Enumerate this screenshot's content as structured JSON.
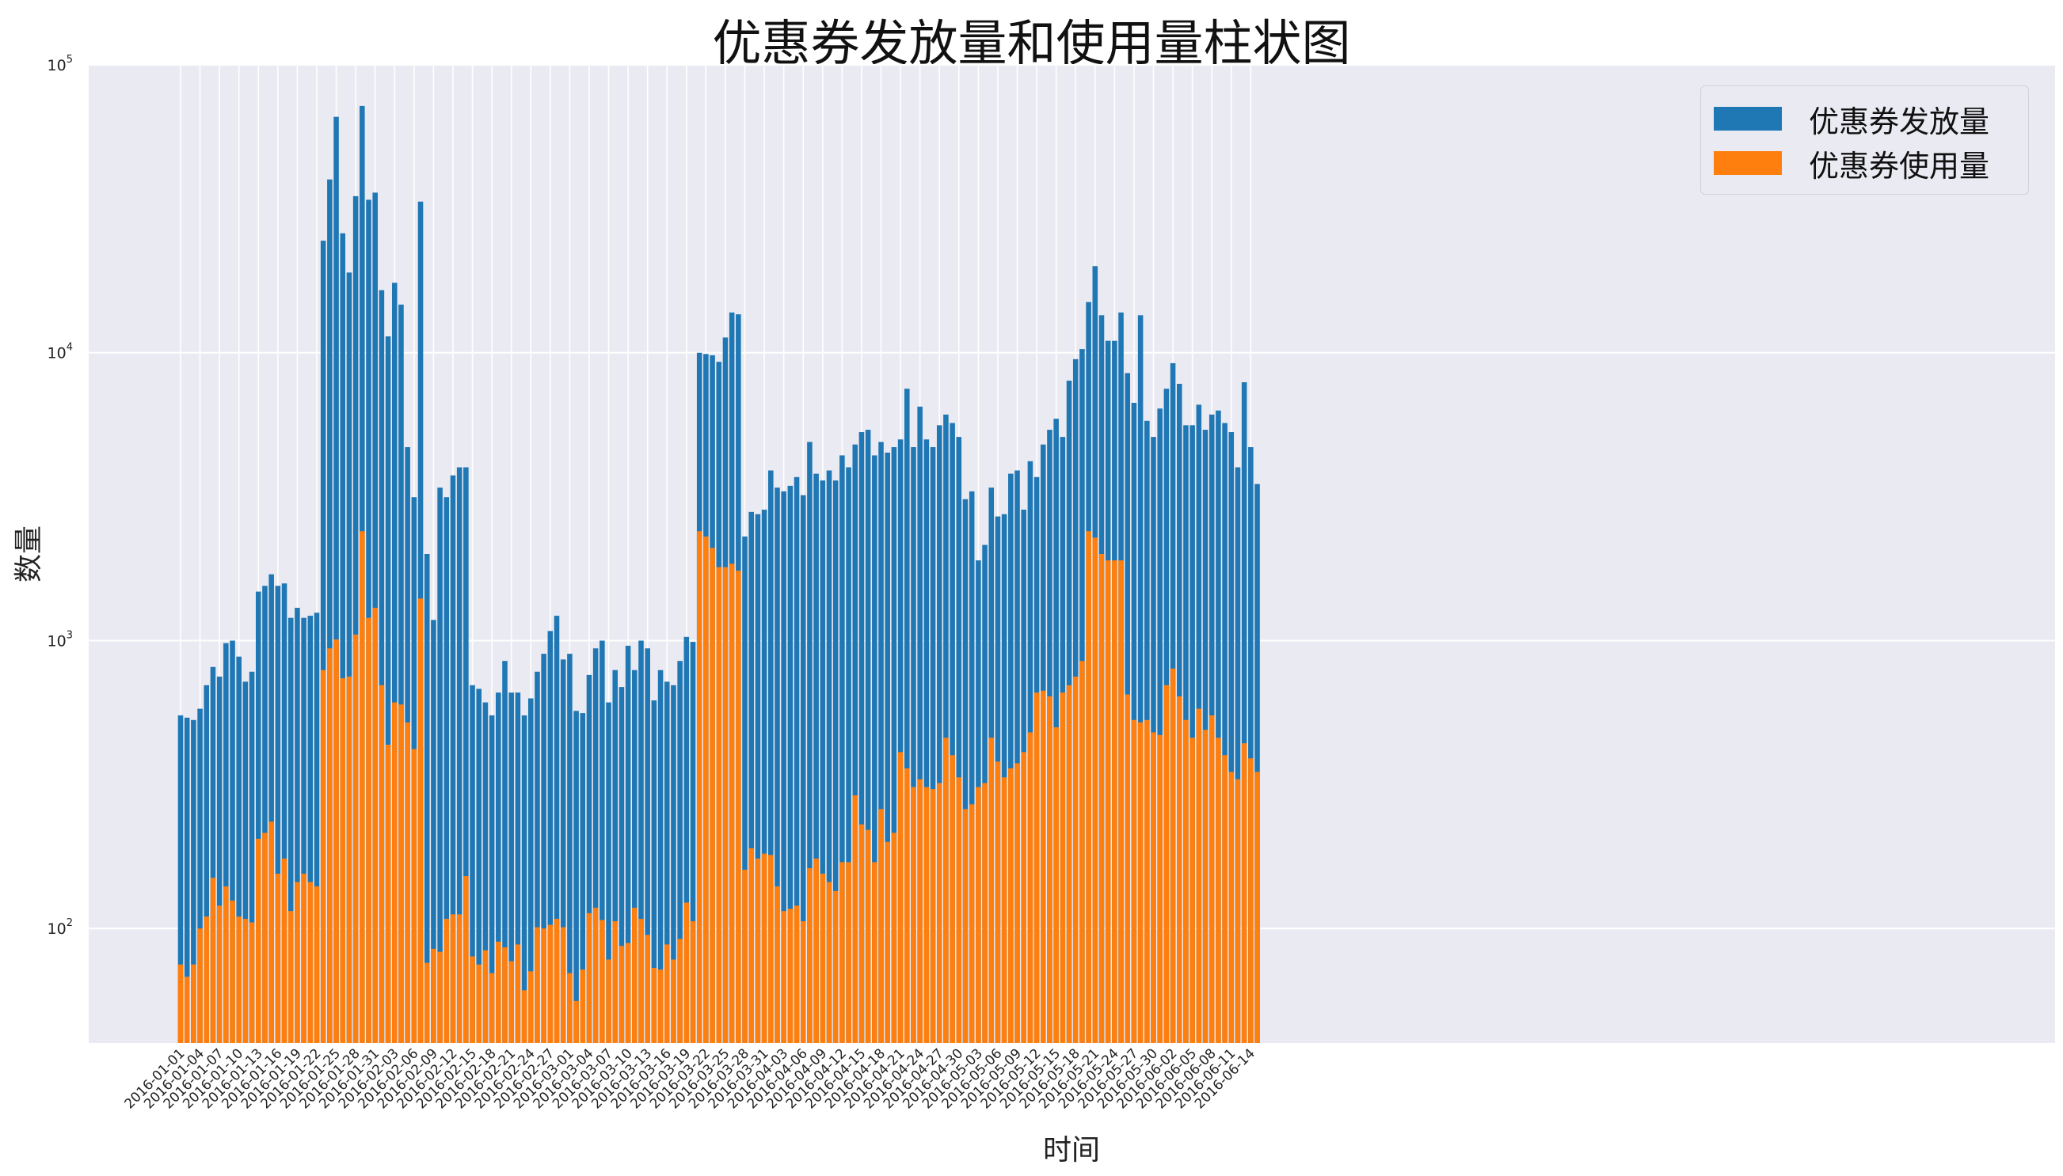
{
  "chart_data": {
    "type": "bar",
    "title": "优惠券发放量和使用量柱状图",
    "xlabel": "时间",
    "ylabel": "数量",
    "yscale": "log",
    "ylim": [
      40,
      100000
    ],
    "y_ticks": [
      {
        "value": 100,
        "base": "10",
        "exp": "2"
      },
      {
        "value": 1000,
        "base": "10",
        "exp": "3"
      },
      {
        "value": 10000,
        "base": "10",
        "exp": "4"
      },
      {
        "value": 100000,
        "base": "10",
        "exp": "5"
      }
    ],
    "grid": true,
    "legend_position": "top-right",
    "start_date": "2016-01-01",
    "x_tick_step_days": 3,
    "x_tick_labels": [
      "2016-01-01",
      "2016-01-04",
      "2016-01-07",
      "2016-01-10",
      "2016-01-13",
      "2016-01-16",
      "2016-01-19",
      "2016-01-22",
      "2016-01-25",
      "2016-01-28",
      "2016-01-31",
      "2016-02-03",
      "2016-02-06",
      "2016-02-09",
      "2016-02-12",
      "2016-02-15",
      "2016-02-18",
      "2016-02-21",
      "2016-02-24",
      "2016-02-27",
      "2016-03-01",
      "2016-03-04",
      "2016-03-07",
      "2016-03-10",
      "2016-03-13",
      "2016-03-16",
      "2016-03-19",
      "2016-03-22",
      "2016-03-25",
      "2016-03-28",
      "2016-03-31",
      "2016-04-03",
      "2016-04-06",
      "2016-04-09",
      "2016-04-12",
      "2016-04-15",
      "2016-04-18",
      "2016-04-21",
      "2016-04-24",
      "2016-04-27",
      "2016-04-30",
      "2016-05-03",
      "2016-05-06",
      "2016-05-09",
      "2016-05-12",
      "2016-05-15",
      "2016-05-18",
      "2016-05-21",
      "2016-05-24",
      "2016-05-27",
      "2016-05-30",
      "2016-06-02",
      "2016-06-05",
      "2016-06-08",
      "2016-06-11",
      "2016-06-14"
    ],
    "series": [
      {
        "name": "优惠券发放量",
        "color": "#1f77b4",
        "values": [
          550,
          540,
          530,
          580,
          700,
          810,
          750,
          980,
          1000,
          880,
          720,
          780,
          1480,
          1550,
          1700,
          1550,
          1580,
          1200,
          1300,
          1200,
          1220,
          1250,
          24500,
          40000,
          66000,
          26000,
          19000,
          35000,
          72000,
          34000,
          36000,
          16500,
          11400,
          17500,
          14700,
          4700,
          3150,
          33500,
          2000,
          1180,
          3400,
          3150,
          3750,
          4000,
          4000,
          700,
          680,
          610,
          550,
          660,
          850,
          660,
          660,
          550,
          630,
          780,
          900,
          1080,
          1220,
          860,
          900,
          570,
          560,
          760,
          940,
          1000,
          610,
          790,
          690,
          960,
          790,
          1000,
          940,
          620,
          790,
          720,
          700,
          850,
          1030,
          990,
          10000,
          9900,
          9800,
          9300,
          11300,
          13800,
          13600,
          2300,
          2800,
          2750,
          2850,
          3900,
          3400,
          3300,
          3450,
          3700,
          3200,
          4900,
          3800,
          3600,
          3900,
          3600,
          4400,
          4000,
          4800,
          5300,
          5400,
          4400,
          4900,
          4500,
          4700,
          5000,
          7500,
          4700,
          6500,
          5000,
          4700,
          5600,
          6100,
          5700,
          5100,
          3100,
          3300,
          1900,
          2150,
          3400,
          2700,
          2750,
          3800,
          3900,
          2850,
          4200,
          3700,
          4800,
          5400,
          5900,
          5100,
          8000,
          9500,
          10300,
          15000,
          20000,
          13500,
          11000,
          11000,
          13800,
          8500,
          6700,
          13500,
          5800,
          5100,
          6400,
          7500,
          9200,
          7800,
          5600,
          5600,
          6600,
          5400,
          6100,
          6300,
          5700,
          5300,
          4000,
          7900,
          4700,
          3500
        ]
      },
      {
        "name": "优惠券使用量",
        "color": "#ff7f0e",
        "values": [
          75,
          68,
          75,
          100,
          110,
          150,
          120,
          140,
          125,
          110,
          108,
          105,
          205,
          215,
          235,
          155,
          175,
          115,
          145,
          155,
          145,
          140,
          790,
          940,
          1010,
          740,
          750,
          1050,
          2400,
          1200,
          1300,
          700,
          435,
          610,
          600,
          520,
          420,
          1400,
          76,
          85,
          83,
          108,
          112,
          112,
          152,
          80,
          75,
          84,
          70,
          90,
          86,
          77,
          88,
          61,
          71,
          101,
          100,
          103,
          108,
          101,
          70,
          56,
          72,
          113,
          118,
          107,
          78,
          106,
          87,
          89,
          118,
          108,
          95,
          73,
          72,
          88,
          78,
          92,
          123,
          106,
          2400,
          2300,
          2100,
          1800,
          1800,
          1850,
          1750,
          160,
          190,
          175,
          182,
          180,
          140,
          115,
          117,
          120,
          106,
          162,
          175,
          155,
          145,
          135,
          170,
          170,
          290,
          230,
          220,
          170,
          260,
          200,
          215,
          410,
          360,
          310,
          330,
          310,
          305,
          320,
          460,
          400,
          335,
          260,
          270,
          310,
          320,
          460,
          380,
          335,
          360,
          375,
          410,
          480,
          660,
          670,
          640,
          500,
          660,
          700,
          750,
          850,
          2400,
          2280,
          2000,
          1900,
          1900,
          1900,
          650,
          530,
          520,
          530,
          480,
          470,
          700,
          800,
          640,
          530,
          460,
          580,
          490,
          550,
          460,
          400,
          350,
          330,
          440,
          390,
          350
        ]
      }
    ]
  }
}
